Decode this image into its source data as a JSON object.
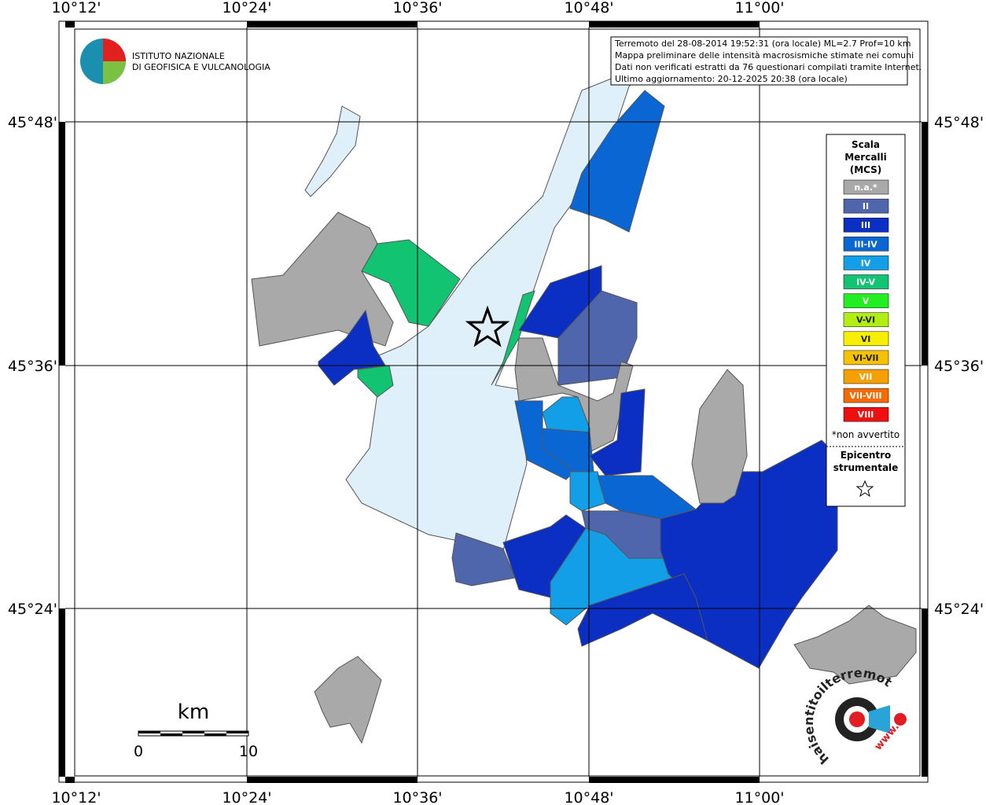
{
  "grid_labels": {
    "lon": [
      "10°12'",
      "10°24'",
      "10°36'",
      "10°48'",
      "11°00'"
    ],
    "lat": [
      "45°48'",
      "45°36'",
      "45°24'"
    ]
  },
  "logo": {
    "line1": "ISTITUTO NAZIONALE",
    "line2": "DI GEOFISICA E VULCANOLOGIA"
  },
  "info": [
    "Terremoto del 28-08-2014 19:52:31 (ora locale) ML=2.7 Prof=10 km",
    "Mappa preliminare delle intensità macrosismiche stimate nei comuni",
    "Dati non verificati estratti da 76 questionari compilati tramite Internet.",
    "Ultimo aggiornamento: 20-12-2025 20:38 (ora locale)"
  ],
  "legend": {
    "title": [
      "Scala",
      "Mercalli",
      "(MCS)"
    ],
    "items": [
      {
        "label": "n.a.*",
        "color": "#a9a9a9"
      },
      {
        "label": "II",
        "color": "#4f66ad"
      },
      {
        "label": "III",
        "color": "#0a2fc2"
      },
      {
        "label": "III-IV",
        "color": "#0a66d2"
      },
      {
        "label": "IV",
        "color": "#129fe8"
      },
      {
        "label": "IV-V",
        "color": "#12c472"
      },
      {
        "label": "V",
        "color": "#22ee22"
      },
      {
        "label": "V-VI",
        "color": "#b2ee12"
      },
      {
        "label": "VI",
        "color": "#f6f000"
      },
      {
        "label": "VI-VII",
        "color": "#f6c200"
      },
      {
        "label": "VII",
        "color": "#f6a000"
      },
      {
        "label": "VII-VIII",
        "color": "#f66a00"
      },
      {
        "label": "VIII",
        "color": "#ee1010"
      }
    ],
    "note": "*non avvertito",
    "epicenter": [
      "Epicentro",
      "strumentale"
    ]
  },
  "scale": {
    "unit": "km",
    "min": 0,
    "max": 10
  },
  "site_logo": {
    "text": "haisentitoilterremoto.it",
    "prefix": "www."
  }
}
